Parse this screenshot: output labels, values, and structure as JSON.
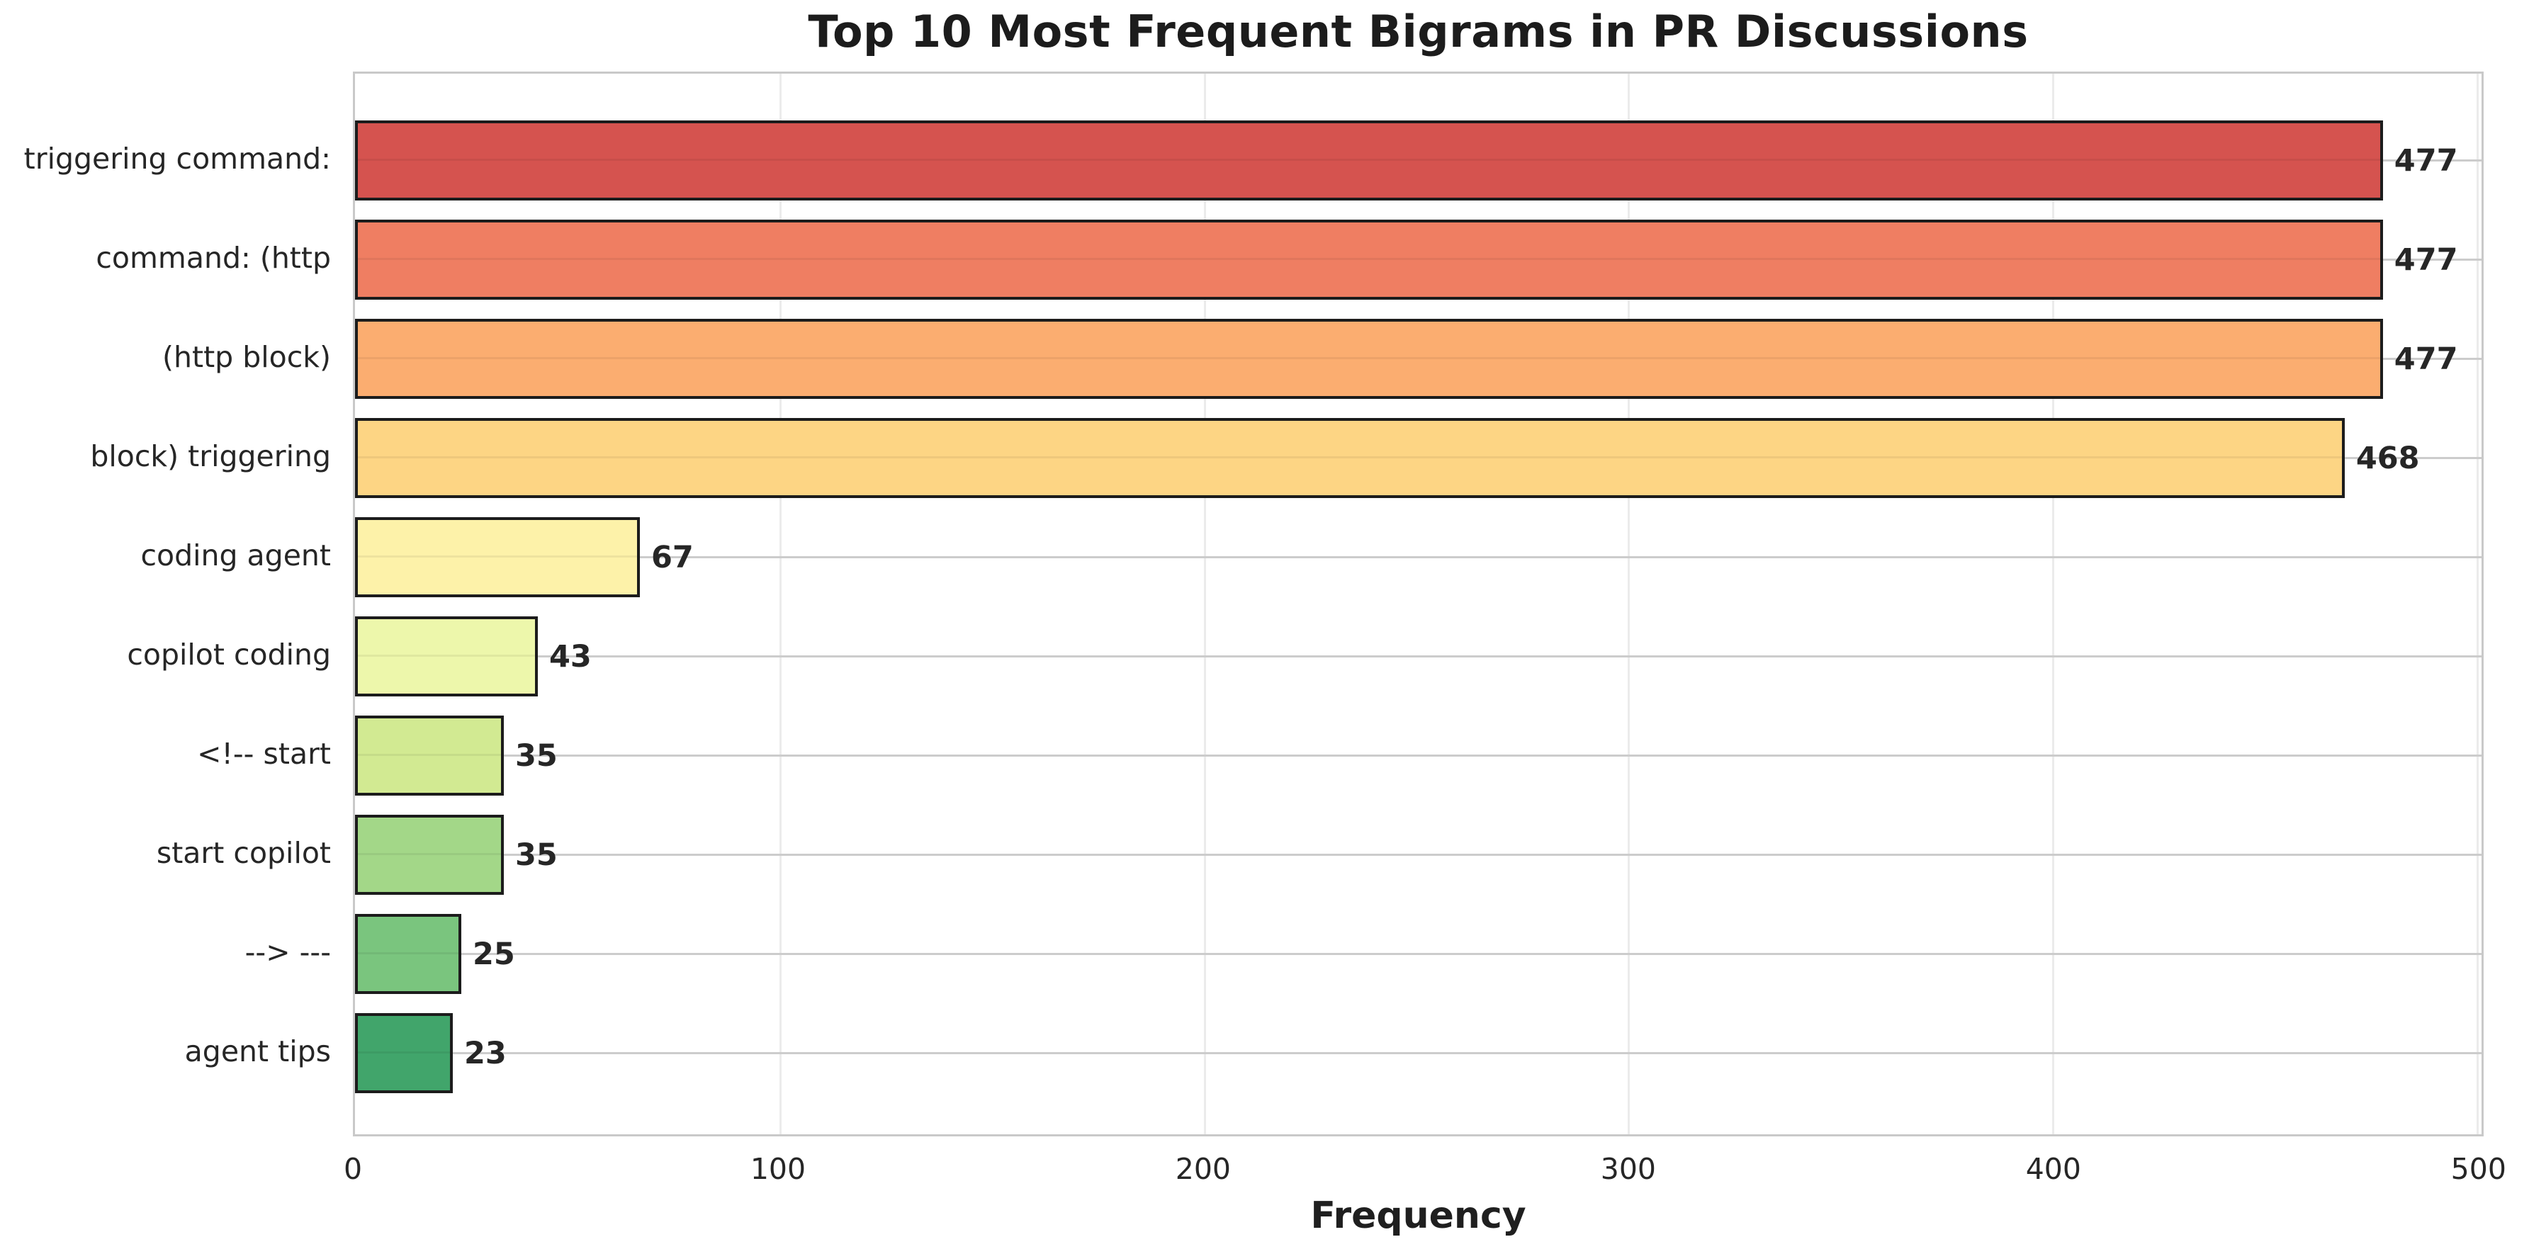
{
  "chart_data": {
    "type": "bar",
    "orientation": "horizontal",
    "title": "Top 10 Most Frequent Bigrams in PR Discussions",
    "xlabel": "Frequency",
    "ylabel": "",
    "categories": [
      "triggering command:",
      "command: (http",
      "(http block)",
      "block) triggering",
      "coding agent",
      "copilot coding",
      "<!-- start",
      "start copilot",
      "--> ---",
      "agent tips"
    ],
    "values": [
      477,
      477,
      477,
      468,
      67,
      43,
      35,
      35,
      25,
      23
    ],
    "bar_colors": [
      "#d5534f",
      "#ef7e62",
      "#fbad70",
      "#fdd584",
      "#fdf2a9",
      "#edf7ab",
      "#d2ea92",
      "#a3d788",
      "#7ac57e",
      "#41a56b"
    ],
    "bar_edge_color": "#1c1c1c",
    "x_ticks": [
      0,
      100,
      200,
      300,
      400,
      500
    ],
    "xlim": [
      0,
      501
    ],
    "grid": "both",
    "legend": "none",
    "background": "#ffffff"
  }
}
